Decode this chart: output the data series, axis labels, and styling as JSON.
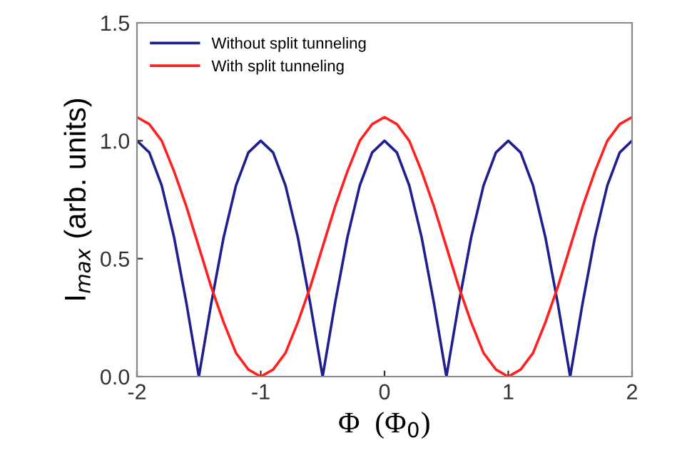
{
  "chart_data": {
    "type": "line",
    "xlabel": "Φ  (Φ$_{0}$)",
    "ylabel": "I$_{max}$ (arb. units)",
    "x": [
      -2,
      -1.9,
      -1.8,
      -1.7,
      -1.6,
      -1.5,
      -1.4,
      -1.3,
      -1.2,
      -1.1,
      -1,
      -0.9,
      -0.8,
      -0.7,
      -0.6,
      -0.5,
      -0.4,
      -0.3,
      -0.2,
      -0.1,
      0,
      0.1,
      0.2,
      0.3,
      0.4,
      0.5,
      0.6,
      0.7,
      0.8,
      0.9,
      1,
      1.1,
      1.2,
      1.3,
      1.4,
      1.5,
      1.6,
      1.7,
      1.8,
      1.9,
      2
    ],
    "series": [
      {
        "name": "Without split tunneling",
        "color": "#1f1f8f",
        "values": [
          1,
          0.95,
          0.81,
          0.59,
          0.31,
          0,
          0.31,
          0.59,
          0.81,
          0.95,
          1,
          0.95,
          0.81,
          0.59,
          0.31,
          0,
          0.31,
          0.59,
          0.81,
          0.95,
          1,
          0.95,
          0.81,
          0.59,
          0.31,
          0,
          0.31,
          0.59,
          0.81,
          0.95,
          1,
          0.95,
          0.81,
          0.59,
          0.31,
          0,
          0.31,
          0.59,
          0.81,
          0.95,
          1
        ]
      },
      {
        "name": "With split tunneling",
        "color": "#ff2020",
        "values": [
          1.1,
          1.07,
          1.0,
          0.87,
          0.72,
          0.55,
          0.38,
          0.23,
          0.1,
          0.03,
          0,
          0.03,
          0.1,
          0.23,
          0.38,
          0.55,
          0.72,
          0.87,
          1.0,
          1.07,
          1.1,
          1.07,
          1.0,
          0.87,
          0.72,
          0.55,
          0.38,
          0.23,
          0.1,
          0.03,
          0,
          0.03,
          0.1,
          0.23,
          0.38,
          0.55,
          0.72,
          0.87,
          1.0,
          1.07,
          1.1
        ]
      }
    ],
    "xlim": [
      -2,
      2
    ],
    "xticks": [
      -2,
      -1,
      0,
      1,
      2
    ],
    "ylim": [
      0,
      1.5
    ],
    "yticks": [
      {
        "value": 0,
        "label": "0.0"
      },
      {
        "value": 0.5,
        "label": "0.5"
      },
      {
        "value": 1,
        "label": "1.0"
      },
      {
        "value": 1.5,
        "label": "1.5"
      }
    ],
    "legend": "top left",
    "grid": false,
    "marker": "none",
    "line_style": "solid"
  }
}
